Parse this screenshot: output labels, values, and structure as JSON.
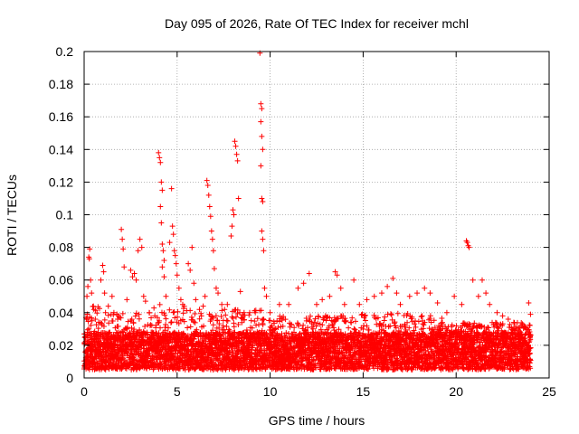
{
  "chart_data": {
    "type": "scatter",
    "title": "Day 095 of 2026, Rate Of TEC Index for receiver mchl",
    "xlabel": "GPS time / hours",
    "ylabel": "ROTI / TECUs",
    "xlim": [
      0,
      25
    ],
    "ylim": [
      0,
      0.2
    ],
    "xticks": [
      0,
      5,
      10,
      15,
      20,
      25
    ],
    "xtick_labels": [
      "0",
      "5",
      "10",
      "15",
      "20",
      "25"
    ],
    "yticks": [
      0,
      0.02,
      0.04,
      0.06,
      0.08,
      0.1,
      0.12,
      0.14,
      0.16,
      0.18,
      0.2
    ],
    "ytick_labels": [
      "0",
      "0.02",
      "0.04",
      "0.06",
      "0.08",
      "0.1",
      "0.12",
      "0.14",
      "0.16",
      "0.18",
      "0.2"
    ],
    "grid": true,
    "marker": "+",
    "color": "#ff0000",
    "series": [
      {
        "name": "ROTI",
        "points": [
          [
            0.1,
            0.037
          ],
          [
            0.15,
            0.05
          ],
          [
            0.2,
            0.056
          ],
          [
            0.25,
            0.074
          ],
          [
            0.28,
            0.073
          ],
          [
            0.3,
            0.079
          ],
          [
            0.35,
            0.06
          ],
          [
            0.4,
            0.052
          ],
          [
            0.5,
            0.044
          ],
          [
            0.6,
            0.036
          ],
          [
            0.9,
            0.06
          ],
          [
            1.0,
            0.069
          ],
          [
            1.05,
            0.065
          ],
          [
            1.1,
            0.052
          ],
          [
            1.3,
            0.044
          ],
          [
            1.5,
            0.05
          ],
          [
            1.6,
            0.04
          ],
          [
            1.8,
            0.036
          ],
          [
            2.0,
            0.091
          ],
          [
            2.05,
            0.085
          ],
          [
            2.1,
            0.079
          ],
          [
            2.15,
            0.068
          ],
          [
            2.3,
            0.048
          ],
          [
            2.5,
            0.066
          ],
          [
            2.6,
            0.062
          ],
          [
            2.7,
            0.064
          ],
          [
            2.8,
            0.06
          ],
          [
            2.9,
            0.078
          ],
          [
            3.0,
            0.085
          ],
          [
            3.1,
            0.08
          ],
          [
            3.2,
            0.05
          ],
          [
            3.3,
            0.047
          ],
          [
            3.5,
            0.04
          ],
          [
            3.8,
            0.038
          ],
          [
            4.0,
            0.138
          ],
          [
            4.05,
            0.135
          ],
          [
            4.1,
            0.132
          ],
          [
            4.15,
            0.12
          ],
          [
            4.2,
            0.115
          ],
          [
            4.1,
            0.105
          ],
          [
            4.15,
            0.095
          ],
          [
            4.2,
            0.082
          ],
          [
            4.25,
            0.078
          ],
          [
            4.3,
            0.072
          ],
          [
            4.2,
            0.068
          ],
          [
            4.3,
            0.062
          ],
          [
            4.4,
            0.05
          ],
          [
            4.6,
            0.083
          ],
          [
            4.7,
            0.116
          ],
          [
            4.75,
            0.093
          ],
          [
            4.8,
            0.088
          ],
          [
            4.85,
            0.078
          ],
          [
            4.9,
            0.075
          ],
          [
            4.95,
            0.07
          ],
          [
            5.0,
            0.063
          ],
          [
            5.1,
            0.055
          ],
          [
            5.2,
            0.048
          ],
          [
            5.3,
            0.045
          ],
          [
            5.6,
            0.07
          ],
          [
            5.7,
            0.066
          ],
          [
            5.8,
            0.08
          ],
          [
            5.9,
            0.058
          ],
          [
            6.0,
            0.048
          ],
          [
            6.2,
            0.042
          ],
          [
            6.4,
            0.044
          ],
          [
            6.5,
            0.05
          ],
          [
            6.6,
            0.121
          ],
          [
            6.65,
            0.118
          ],
          [
            6.7,
            0.112
          ],
          [
            6.75,
            0.105
          ],
          [
            6.8,
            0.099
          ],
          [
            6.85,
            0.09
          ],
          [
            6.9,
            0.085
          ],
          [
            6.95,
            0.078
          ],
          [
            7.0,
            0.067
          ],
          [
            7.1,
            0.055
          ],
          [
            7.2,
            0.052
          ],
          [
            7.4,
            0.045
          ],
          [
            7.7,
            0.045
          ],
          [
            7.9,
            0.087
          ],
          [
            7.95,
            0.093
          ],
          [
            8.0,
            0.103
          ],
          [
            8.05,
            0.1
          ],
          [
            8.1,
            0.145
          ],
          [
            8.15,
            0.142
          ],
          [
            8.2,
            0.137
          ],
          [
            8.25,
            0.133
          ],
          [
            8.3,
            0.11
          ],
          [
            8.4,
            0.053
          ],
          [
            8.6,
            0.04
          ],
          [
            8.9,
            0.04
          ],
          [
            9.2,
            0.04
          ],
          [
            9.45,
            0.199
          ],
          [
            9.5,
            0.168
          ],
          [
            9.55,
            0.165
          ],
          [
            9.5,
            0.157
          ],
          [
            9.55,
            0.148
          ],
          [
            9.6,
            0.14
          ],
          [
            9.5,
            0.13
          ],
          [
            9.55,
            0.11
          ],
          [
            9.6,
            0.108
          ],
          [
            9.55,
            0.09
          ],
          [
            9.6,
            0.085
          ],
          [
            9.65,
            0.078
          ],
          [
            9.7,
            0.055
          ],
          [
            9.8,
            0.05
          ],
          [
            10.0,
            0.04
          ],
          [
            10.5,
            0.045
          ],
          [
            11.0,
            0.045
          ],
          [
            11.5,
            0.055
          ],
          [
            11.8,
            0.058
          ],
          [
            12.1,
            0.064
          ],
          [
            12.5,
            0.045
          ],
          [
            12.8,
            0.048
          ],
          [
            13.2,
            0.05
          ],
          [
            13.5,
            0.065
          ],
          [
            13.6,
            0.063
          ],
          [
            13.8,
            0.055
          ],
          [
            14.0,
            0.045
          ],
          [
            14.5,
            0.06
          ],
          [
            14.8,
            0.045
          ],
          [
            15.2,
            0.048
          ],
          [
            15.6,
            0.05
          ],
          [
            16.0,
            0.052
          ],
          [
            16.3,
            0.056
          ],
          [
            16.6,
            0.061
          ],
          [
            16.8,
            0.052
          ],
          [
            17.0,
            0.045
          ],
          [
            17.5,
            0.05
          ],
          [
            17.9,
            0.052
          ],
          [
            18.3,
            0.055
          ],
          [
            18.6,
            0.052
          ],
          [
            19.0,
            0.046
          ],
          [
            19.5,
            0.04
          ],
          [
            19.9,
            0.05
          ],
          [
            20.3,
            0.045
          ],
          [
            20.55,
            0.084
          ],
          [
            20.6,
            0.083
          ],
          [
            20.65,
            0.081
          ],
          [
            20.7,
            0.08
          ],
          [
            20.9,
            0.06
          ],
          [
            21.2,
            0.05
          ],
          [
            21.4,
            0.06
          ],
          [
            21.6,
            0.052
          ],
          [
            21.8,
            0.045
          ],
          [
            22.2,
            0.04
          ],
          [
            22.5,
            0.038
          ],
          [
            22.8,
            0.036
          ],
          [
            23.1,
            0.034
          ],
          [
            23.5,
            0.032
          ],
          [
            23.9,
            0.046
          ],
          [
            24.0,
            0.039
          ]
        ],
        "dense_band": {
          "x_range": [
            0,
            24
          ],
          "baseline_y": [
            0.005,
            0.028
          ],
          "spikes": [
            {
              "x": [
                0,
                1.2
              ],
              "y_max": 0.045
            },
            {
              "x": [
                1.2,
                3.6
              ],
              "y_max": 0.04
            },
            {
              "x": [
                3.6,
                5.4
              ],
              "y_max": 0.045
            },
            {
              "x": [
                5.4,
                9.8
              ],
              "y_max": 0.042
            },
            {
              "x": [
                9.8,
                14.5
              ],
              "y_max": 0.038
            },
            {
              "x": [
                14.5,
                19.5
              ],
              "y_max": 0.04
            },
            {
              "x": [
                19.5,
                24
              ],
              "y_max": 0.034
            }
          ]
        }
      }
    ]
  }
}
